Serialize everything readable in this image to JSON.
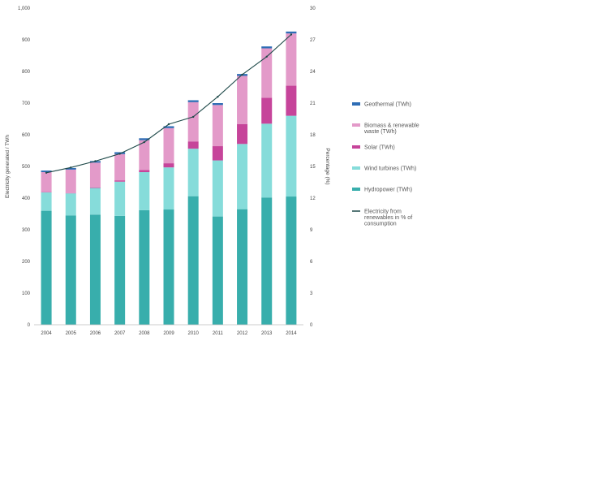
{
  "chart_data": {
    "type": "bar",
    "categories": [
      "2004",
      "2005",
      "2006",
      "2007",
      "2008",
      "2009",
      "2010",
      "2011",
      "2012",
      "2013",
      "2014"
    ],
    "series": [
      {
        "name": "Hydropower (TWh)",
        "kind": "bar",
        "color": "#38aeac",
        "values": [
          360,
          345,
          348,
          344,
          362,
          364,
          406,
          342,
          365,
          402,
          405
        ]
      },
      {
        "name": "Wind turbines (TWh)",
        "kind": "bar",
        "color": "#86dcda",
        "values": [
          58,
          70,
          84,
          108,
          120,
          133,
          150,
          177,
          206,
          233,
          255
        ]
      },
      {
        "name": "Solar (TWh)",
        "kind": "bar",
        "color": "#c6449a",
        "values": [
          1,
          1,
          2,
          4,
          7,
          13,
          23,
          45,
          63,
          82,
          95
        ]
      },
      {
        "name": "Biomass & renewable waste (TWh)",
        "kind": "bar",
        "color": "#e39ac9",
        "values": [
          63,
          74,
          78,
          83,
          94,
          111,
          124,
          130,
          152,
          156,
          165
        ]
      },
      {
        "name": "Geothermal (TWh)",
        "kind": "bar",
        "color": "#2e6db5",
        "values": [
          5,
          5,
          5,
          6,
          6,
          6,
          6,
          6,
          6,
          6,
          6
        ]
      },
      {
        "name": "Electricity from renewables in % of consumption",
        "kind": "line",
        "color": "#1f4a4a",
        "values": [
          14.4,
          14.9,
          15.5,
          16.2,
          17.3,
          19.0,
          19.7,
          21.6,
          23.7,
          25.4,
          27.5
        ]
      }
    ],
    "ylabel": "Electricity generated / TWh",
    "y2label": "Percentage (%)",
    "ylim": [
      0,
      1000
    ],
    "y2lim": [
      0,
      30
    ],
    "yticks": [
      "0",
      "100",
      "200",
      "300",
      "400",
      "500",
      "600",
      "700",
      "800",
      "900",
      "1,000"
    ],
    "y2ticks": [
      "0",
      "3",
      "6",
      "9",
      "12",
      "15",
      "18",
      "21",
      "24",
      "27",
      "30"
    ],
    "legend_order": [
      "Geothermal (TWh)",
      "Biomass & renewable waste (TWh)",
      "Solar (TWh)",
      "Wind turbines (TWh)",
      "Hydropower (TWh)",
      "Electricity from renewables in % of consumption"
    ],
    "legend_placement": "right",
    "grid": false
  }
}
